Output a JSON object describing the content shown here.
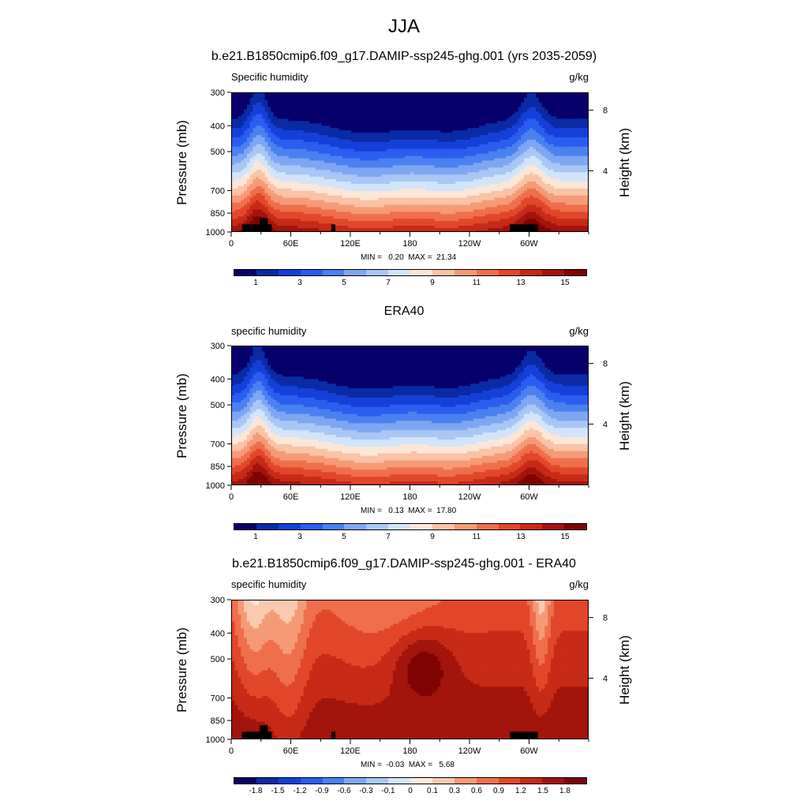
{
  "figure": {
    "main_title": "JJA"
  },
  "panels": [
    {
      "id": "model",
      "title": "b.e21.B1850cmip6.f09_g17.DAMIP-ssp245-ghg.001 (yrs 2035-2059)",
      "left_label": "Specific humidity",
      "right_label": "g/kg",
      "ylabel": "Pressure (mb)",
      "y2label": "Height (km)",
      "minmax": "MIN =   0.20  MAX =  21.34",
      "colorbar_labels": [
        "1",
        "3",
        "5",
        "7",
        "9",
        "11",
        "13",
        "15"
      ]
    },
    {
      "id": "obs",
      "title": "ERA40",
      "left_label": "specific humidity",
      "right_label": "g/kg",
      "ylabel": "Pressure (mb)",
      "y2label": "Height (km)",
      "minmax": "MIN =   0.13  MAX =  17.80",
      "colorbar_labels": [
        "1",
        "3",
        "5",
        "7",
        "9",
        "11",
        "13",
        "15"
      ]
    },
    {
      "id": "diff",
      "title": "b.e21.B1850cmip6.f09_g17.DAMIP-ssp245-ghg.001 - ERA40",
      "left_label": "specific humidity",
      "right_label": "g/kg",
      "ylabel": "Pressure (mb)",
      "y2label": "Height (km)",
      "minmax": "MIN =  -0.03  MAX =   5.68",
      "colorbar_labels": [
        "-1.8",
        "-1.5",
        "-1.2",
        "-0.9",
        "-0.6",
        "-0.3",
        "-0.1",
        "0",
        "0.1",
        "0.3",
        "0.6",
        "0.9",
        "1.2",
        "1.5",
        "1.8"
      ]
    }
  ],
  "colors": {
    "full_colormap": [
      "#08006a",
      "#0b2aa6",
      "#1440d9",
      "#2a5df0",
      "#4a80f0",
      "#7fa6f2",
      "#a9c7f5",
      "#d2e4fa",
      "#fbe6d8",
      "#f8c3a6",
      "#f59a77",
      "#ef6f4c",
      "#e2472a",
      "#c72a16",
      "#a3140c",
      "#7e0404"
    ],
    "diff_colormap": [
      "#08006a",
      "#0b2aa6",
      "#1440d9",
      "#2a5df0",
      "#4a80f0",
      "#7fa6f2",
      "#a9c7f5",
      "#d2e4fa",
      "#fde8dc",
      "#f9c9b0",
      "#f59a77",
      "#ef6f4c",
      "#e2472a",
      "#c72a16",
      "#a3140c",
      "#7e0404"
    ],
    "topography": "#000000"
  },
  "chart_data": [
    {
      "type": "heatmap",
      "title": "b.e21.B1850cmip6.f09_g17.DAMIP-ssp245-ghg.001 (yrs 2035-2059)",
      "ylabel": "Pressure (mb)",
      "y2label": "Height (km)",
      "x_ticks": [
        "0",
        "60E",
        "120E",
        "180",
        "120W",
        "60W"
      ],
      "x_tick_values": [
        0,
        60,
        120,
        180,
        240,
        300
      ],
      "xlim": [
        0,
        360
      ],
      "y_ticks": [
        300,
        400,
        500,
        700,
        850,
        1000
      ],
      "ylim": [
        300,
        1000
      ],
      "y_scale": "log",
      "y2_ticks": [
        8,
        4
      ],
      "units": "g/kg",
      "levels": [
        1,
        3,
        5,
        7,
        9,
        11,
        13,
        15
      ],
      "min": 0.2,
      "max": 21.34,
      "legend": "bottom"
    },
    {
      "type": "heatmap",
      "title": "ERA40",
      "ylabel": "Pressure (mb)",
      "y2label": "Height (km)",
      "x_ticks": [
        "0",
        "60E",
        "120E",
        "180",
        "120W",
        "60W"
      ],
      "x_tick_values": [
        0,
        60,
        120,
        180,
        240,
        300
      ],
      "xlim": [
        0,
        360
      ],
      "y_ticks": [
        300,
        400,
        500,
        700,
        850,
        1000
      ],
      "ylim": [
        300,
        1000
      ],
      "y_scale": "log",
      "y2_ticks": [
        8,
        4
      ],
      "units": "g/kg",
      "levels": [
        1,
        3,
        5,
        7,
        9,
        11,
        13,
        15
      ],
      "min": 0.13,
      "max": 17.8,
      "legend": "bottom"
    },
    {
      "type": "heatmap",
      "title": "b.e21.B1850cmip6.f09_g17.DAMIP-ssp245-ghg.001 - ERA40",
      "ylabel": "Pressure (mb)",
      "y2label": "Height (km)",
      "x_ticks": [
        "0",
        "60E",
        "120E",
        "180",
        "120W",
        "60W"
      ],
      "x_tick_values": [
        0,
        60,
        120,
        180,
        240,
        300
      ],
      "xlim": [
        0,
        360
      ],
      "y_ticks": [
        300,
        400,
        500,
        700,
        850,
        1000
      ],
      "ylim": [
        300,
        1000
      ],
      "y_scale": "log",
      "y2_ticks": [
        8,
        4
      ],
      "units": "g/kg",
      "levels": [
        -1.8,
        -1.5,
        -1.2,
        -0.9,
        -0.6,
        -0.3,
        -0.1,
        0,
        0.1,
        0.3,
        0.6,
        0.9,
        1.2,
        1.5,
        1.8
      ],
      "min": -0.03,
      "max": 5.68,
      "legend": "bottom"
    }
  ]
}
